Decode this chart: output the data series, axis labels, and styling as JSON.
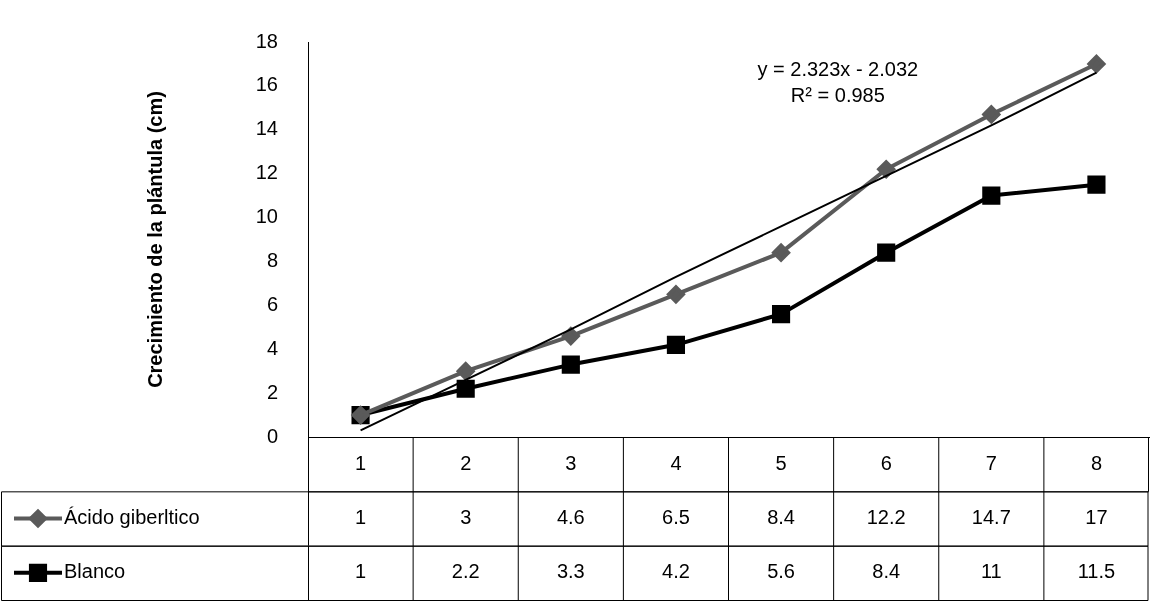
{
  "chart_data": {
    "type": "line",
    "ylabel": "Crecimiento de la plántula (cm)",
    "categories": [
      "1",
      "2",
      "3",
      "4",
      "5",
      "6",
      "7",
      "8"
    ],
    "series": [
      {
        "name": "Ácido giberltico",
        "color": "#5a5a5a",
        "marker": "diamond",
        "values": [
          1,
          3,
          4.6,
          6.5,
          8.4,
          12.2,
          14.7,
          17
        ],
        "value_labels": [
          "1",
          "3",
          "4.6",
          "6.5",
          "8.4",
          "12.2",
          "14.7",
          "17"
        ]
      },
      {
        "name": "Blanco",
        "color": "#000000",
        "marker": "square",
        "values": [
          1,
          2.2,
          3.3,
          4.2,
          5.6,
          8.4,
          11,
          11.5
        ],
        "value_labels": [
          "1",
          "2.2",
          "3.3",
          "4.2",
          "5.6",
          "8.4",
          "11",
          "11.5"
        ]
      },
      {
        "type": "line",
        "color": "#000000",
        "marker": "none",
        "values": [
          0.3,
          2.6,
          4.9,
          7.3,
          9.6,
          11.9,
          14.2,
          16.6
        ]
      }
    ],
    "ylim": [
      0,
      18
    ],
    "yticks": [
      0,
      2,
      4,
      6,
      8,
      10,
      12,
      14,
      16,
      18
    ],
    "grid": false,
    "legend": "bottom",
    "annotations": [
      "y = 2.323x - 2.032",
      "R² = 0.985"
    ]
  }
}
